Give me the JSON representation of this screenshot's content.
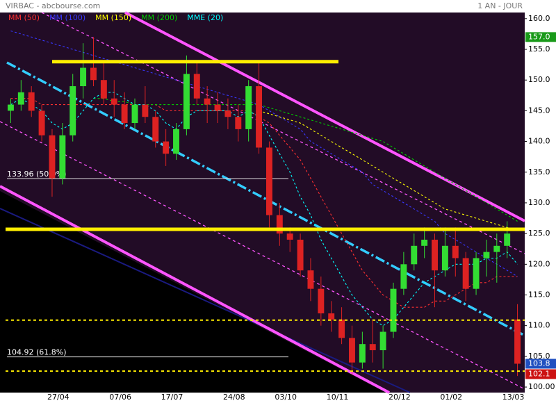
{
  "chart_data": {
    "type": "candlestick",
    "title": "VIRBAC - abcbourse.com",
    "period": "1 AN - JOUR",
    "categories": [
      null,
      null,
      null,
      null,
      null,
      "27/04",
      null,
      null,
      null,
      null,
      null,
      "07/06",
      null,
      null,
      null,
      null,
      "17/07",
      null,
      null,
      null,
      null,
      null,
      "24/08",
      null,
      null,
      null,
      null,
      "03/10",
      null,
      null,
      null,
      null,
      "10/11",
      null,
      null,
      null,
      null,
      null,
      "20/12",
      null,
      null,
      null,
      null,
      "01/02",
      null,
      null,
      null,
      null,
      null,
      "13/03"
    ],
    "open": [
      145,
      146,
      148,
      145,
      141,
      134,
      141,
      149,
      152,
      150,
      147,
      146,
      143,
      146,
      144,
      140,
      138,
      142,
      151,
      147,
      146,
      145,
      144,
      142,
      149,
      139,
      128,
      125,
      124,
      119,
      116,
      112,
      111,
      108,
      104,
      107,
      106,
      109,
      116,
      120,
      123,
      124,
      119,
      123,
      121,
      116,
      121,
      122,
      123,
      111
    ],
    "high": [
      147,
      150,
      149,
      146,
      142,
      143,
      151,
      156,
      157,
      153,
      150,
      148,
      147,
      149,
      145,
      142,
      143,
      154,
      153,
      149,
      148,
      147,
      146,
      150,
      153,
      140,
      130,
      126,
      125,
      121,
      118,
      114,
      113,
      110,
      109,
      111,
      110,
      117,
      122,
      125,
      126,
      125,
      126,
      126,
      122,
      122,
      124,
      125,
      127,
      113.5
    ],
    "low": [
      143,
      145,
      144,
      140,
      131,
      133,
      140,
      147,
      149,
      146,
      144,
      142,
      142,
      143,
      139,
      136,
      137,
      141,
      146,
      143,
      143,
      142,
      140,
      140,
      138,
      126,
      123,
      122,
      118,
      114,
      110,
      109,
      107,
      102,
      103,
      104,
      103,
      108,
      115,
      119,
      121,
      113,
      118,
      118,
      114,
      115,
      118,
      117,
      121,
      101.8
    ],
    "close": [
      146,
      148,
      145,
      141,
      134,
      141,
      149,
      152,
      150,
      147,
      146,
      143,
      146,
      144,
      140,
      138,
      142,
      151,
      147,
      146,
      145,
      144,
      142,
      149,
      139,
      128,
      125,
      124,
      119,
      116,
      112,
      111,
      108,
      104,
      107,
      106,
      109,
      116,
      120,
      123,
      124,
      119,
      123,
      121,
      116,
      121,
      122,
      123,
      125,
      103.8
    ],
    "up_color": "#33dd33",
    "down_color": "#dd2222",
    "series": [
      {
        "name": "MM (50)",
        "color": "#ff3030",
        "values": [
          147,
          147,
          147,
          146,
          146,
          146,
          146,
          146,
          146,
          146,
          146,
          146,
          146,
          146,
          146,
          145,
          145,
          145,
          145,
          145,
          145,
          145,
          145,
          145,
          144,
          143,
          141,
          139,
          137,
          134,
          131,
          128,
          125,
          122,
          119,
          117,
          115,
          114,
          113,
          113,
          113,
          114,
          114,
          115,
          116,
          117,
          117,
          118,
          118,
          118
        ]
      },
      {
        "name": "MM (100)",
        "color": "#3838ff",
        "values": [
          158,
          157.5,
          157,
          156.5,
          156,
          155.5,
          155,
          154.5,
          154,
          153.5,
          153,
          152.5,
          152,
          151.5,
          151,
          150.5,
          150,
          149.5,
          149,
          148.5,
          148,
          147.5,
          147,
          146.5,
          146,
          145,
          144,
          143,
          142,
          140,
          139,
          138,
          137,
          136,
          135,
          133,
          132,
          131,
          130,
          129,
          128,
          127,
          125,
          124,
          123,
          122,
          121,
          120,
          119,
          118
        ]
      },
      {
        "name": "MM (150)",
        "color": "#ffff00",
        "values": [
          null,
          null,
          null,
          null,
          null,
          null,
          null,
          null,
          null,
          null,
          null,
          null,
          null,
          null,
          null,
          null,
          null,
          null,
          null,
          null,
          null,
          null,
          null,
          null,
          145,
          144.5,
          144,
          143.5,
          143,
          142,
          141,
          140,
          139,
          138,
          137,
          136,
          135,
          134,
          133,
          132,
          131,
          130,
          129,
          128.5,
          128,
          127.5,
          127,
          126.5,
          126,
          125.5
        ]
      },
      {
        "name": "MM (200)",
        "color": "#00cc00",
        "values": [
          null,
          null,
          null,
          null,
          null,
          null,
          null,
          null,
          147,
          147,
          146.5,
          146.5,
          146,
          146,
          146,
          146,
          146,
          146,
          146,
          146,
          146,
          146,
          146,
          146,
          146,
          145.5,
          145,
          144.5,
          144,
          143.5,
          143,
          142.5,
          142,
          141.5,
          141,
          140.5,
          140,
          139,
          138,
          137,
          136,
          135,
          134,
          133,
          132,
          131,
          130,
          129,
          128,
          127
        ]
      },
      {
        "name": "MME (20)",
        "color": "#00ffff",
        "values": [
          146,
          147,
          146,
          145,
          143,
          142,
          143,
          145,
          147,
          148,
          148,
          147,
          146,
          146,
          145,
          143,
          142,
          144,
          145,
          145,
          145,
          145,
          144,
          145,
          144,
          141,
          138,
          135,
          131,
          128,
          124,
          121,
          118,
          115,
          113,
          111,
          110,
          111,
          113,
          115,
          117,
          118,
          119,
          120,
          120,
          120,
          121,
          121,
          122,
          120
        ]
      }
    ],
    "ylim": [
      99.1,
      161.0
    ],
    "yticks": [
      {
        "value": 160,
        "label": "160.0"
      },
      {
        "value": 155,
        "label": "155.0"
      },
      {
        "value": 150,
        "label": "150.0"
      },
      {
        "value": 145,
        "label": "145.0"
      },
      {
        "value": 140,
        "label": "140.0"
      },
      {
        "value": 135,
        "label": "135.0"
      },
      {
        "value": 130,
        "label": "130.0"
      },
      {
        "value": 125,
        "label": "125.0"
      },
      {
        "value": 120,
        "label": "120.0"
      },
      {
        "value": 115,
        "label": "115.0"
      },
      {
        "value": 110,
        "label": "110.0"
      },
      {
        "value": 105,
        "label": "105.0"
      },
      {
        "value": 100,
        "label": "100.00"
      }
    ],
    "fib_levels": [
      {
        "value": 133.96,
        "label": "133.96  (50.0%)"
      },
      {
        "value": 104.92,
        "label": "104.92  (61.8%)"
      }
    ],
    "resistance_levels": [
      153,
      125.7
    ],
    "support_levels": [
      110.9,
      102.6
    ],
    "price_tags": [
      {
        "value": 157,
        "label": "157.0",
        "color": "#1a9a1a"
      },
      {
        "value": 103.8,
        "label": "103.8",
        "color": "#2050c0"
      },
      {
        "value": 102.1,
        "label": "102.1",
        "color": "#cc1111"
      }
    ]
  }
}
